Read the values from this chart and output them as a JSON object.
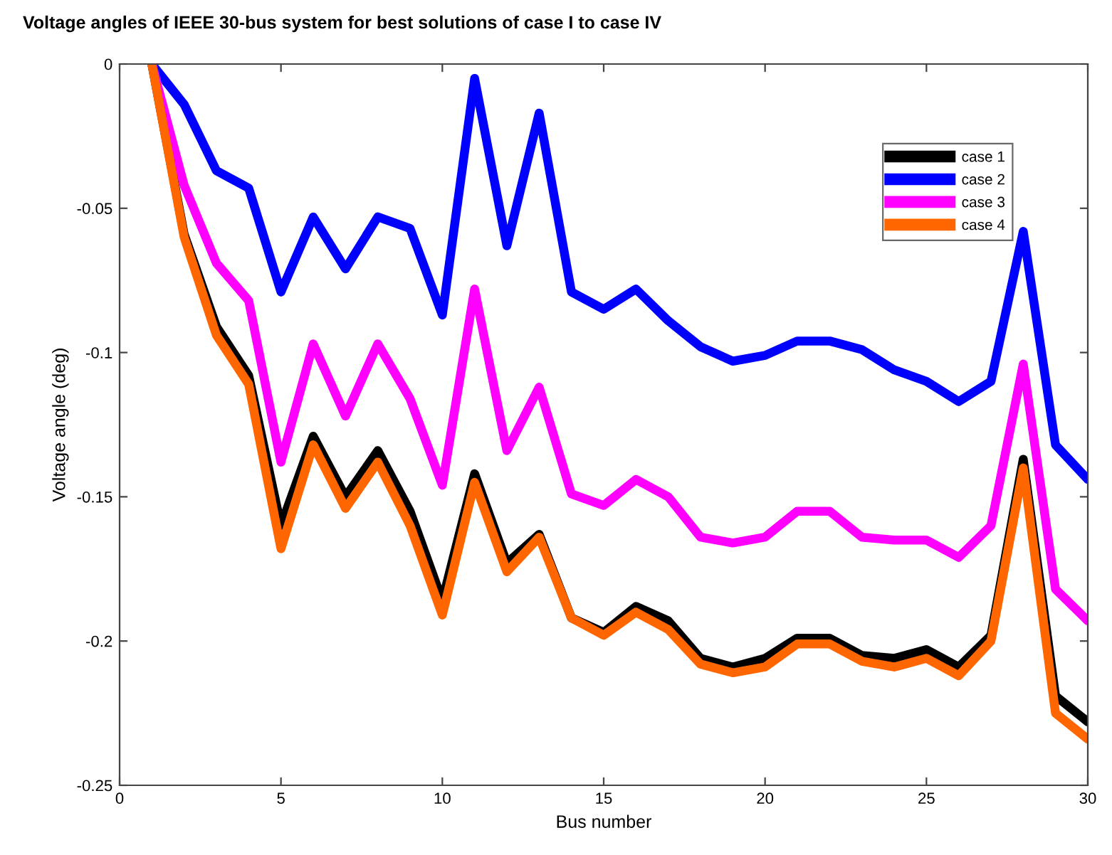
{
  "chart_data": {
    "type": "line",
    "title": "Voltage angles of IEEE 30-bus system for best solutions of case I to case IV",
    "xlabel": "Bus number",
    "ylabel": "Voltage angle (deg)",
    "x": [
      1,
      2,
      3,
      4,
      5,
      6,
      7,
      8,
      9,
      10,
      11,
      12,
      13,
      14,
      15,
      16,
      17,
      18,
      19,
      20,
      21,
      22,
      23,
      24,
      25,
      26,
      27,
      28,
      29,
      30
    ],
    "series": [
      {
        "name": "case 1",
        "color": "#000000",
        "values": [
          0,
          -0.059,
          -0.091,
          -0.108,
          -0.16,
          -0.129,
          -0.15,
          -0.134,
          -0.155,
          -0.186,
          -0.142,
          -0.173,
          -0.163,
          -0.192,
          -0.197,
          -0.188,
          -0.193,
          -0.206,
          -0.209,
          -0.206,
          -0.199,
          -0.199,
          -0.205,
          -0.206,
          -0.203,
          -0.209,
          -0.198,
          -0.137,
          -0.219,
          -0.228
        ]
      },
      {
        "name": "case 2",
        "color": "#0000ff",
        "values": [
          0,
          -0.014,
          -0.037,
          -0.043,
          -0.079,
          -0.053,
          -0.071,
          -0.053,
          -0.057,
          -0.087,
          -0.005,
          -0.063,
          -0.017,
          -0.079,
          -0.085,
          -0.078,
          -0.089,
          -0.098,
          -0.103,
          -0.101,
          -0.096,
          -0.096,
          -0.099,
          -0.106,
          -0.11,
          -0.117,
          -0.11,
          -0.058,
          -0.132,
          -0.144
        ]
      },
      {
        "name": "case 3",
        "color": "#ff00ff",
        "values": [
          0,
          -0.042,
          -0.069,
          -0.082,
          -0.138,
          -0.097,
          -0.122,
          -0.097,
          -0.116,
          -0.146,
          -0.078,
          -0.134,
          -0.112,
          -0.149,
          -0.153,
          -0.144,
          -0.15,
          -0.164,
          -0.166,
          -0.164,
          -0.155,
          -0.155,
          -0.164,
          -0.165,
          -0.165,
          -0.171,
          -0.16,
          -0.104,
          -0.182,
          -0.193
        ]
      },
      {
        "name": "case 4",
        "color": "#ff6600",
        "values": [
          0,
          -0.06,
          -0.094,
          -0.111,
          -0.168,
          -0.132,
          -0.154,
          -0.138,
          -0.16,
          -0.191,
          -0.145,
          -0.176,
          -0.164,
          -0.192,
          -0.198,
          -0.19,
          -0.196,
          -0.208,
          -0.211,
          -0.209,
          -0.201,
          -0.201,
          -0.207,
          -0.209,
          -0.206,
          -0.212,
          -0.2,
          -0.14,
          -0.225,
          -0.234
        ]
      }
    ],
    "xlim": [
      0,
      30
    ],
    "ylim": [
      -0.25,
      0
    ],
    "xticks": [
      0,
      5,
      10,
      15,
      20,
      25,
      30
    ],
    "yticks": [
      -0.25,
      -0.2,
      -0.15,
      -0.1,
      -0.05,
      0
    ],
    "grid": false,
    "legend": "top right",
    "marker": "none",
    "line_style": "solid"
  }
}
